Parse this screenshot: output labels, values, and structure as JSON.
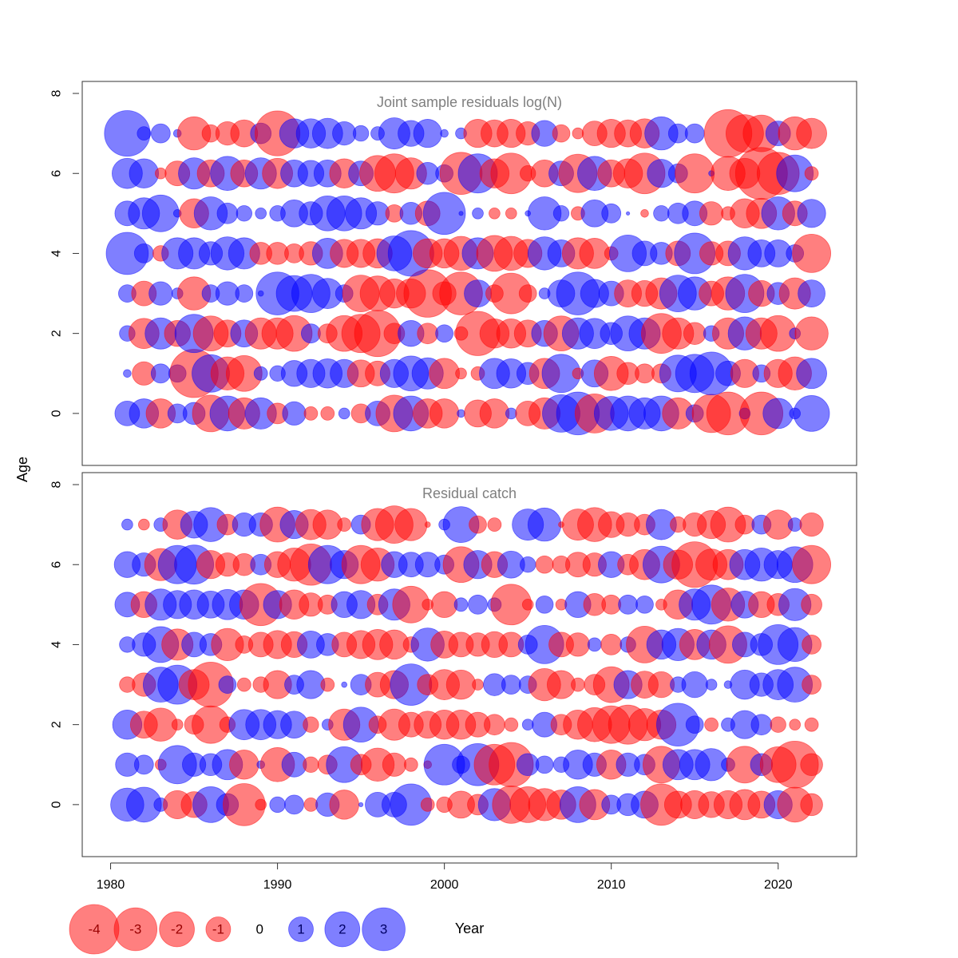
{
  "chart_data": {
    "type": "scatter",
    "style": "bubble",
    "xlabel": "Year",
    "ylabel": "Age",
    "xlim": [
      1978.3,
      2024.7
    ],
    "ylim": [
      -1.3,
      8.3
    ],
    "x_ticks": [
      1980,
      1990,
      2000,
      2010,
      2020
    ],
    "y_ticks": [
      0,
      2,
      4,
      6,
      8
    ],
    "x_tick_labels": [
      "1980",
      "1990",
      "2000",
      "2010",
      "2020"
    ],
    "y_tick_labels": [
      "0",
      "2",
      "4",
      "6",
      "8"
    ],
    "colors": {
      "negative": "#ff0000",
      "positive": "#0000ff",
      "opacity": 0.5
    },
    "years": [
      1981,
      1982,
      1983,
      1984,
      1985,
      1986,
      1987,
      1988,
      1989,
      1990,
      1991,
      1992,
      1993,
      1994,
      1995,
      1996,
      1997,
      1998,
      1999,
      2000,
      2001,
      2002,
      2003,
      2004,
      2005,
      2006,
      2007,
      2008,
      2009,
      2010,
      2011,
      2012,
      2013,
      2014,
      2015,
      2016,
      2017,
      2018,
      2019,
      2020,
      2021,
      2022
    ],
    "ages": [
      0,
      1,
      2,
      3,
      4,
      5,
      6,
      7
    ],
    "legend": {
      "values": [
        -4,
        -3,
        -2,
        -1,
        0,
        1,
        2,
        3
      ],
      "labels": [
        "-4",
        "-3",
        "-2",
        "-1",
        "0",
        "1",
        "2",
        "3"
      ]
    },
    "panels": [
      {
        "title": "Joint sample residuals log(N)",
        "residuals": [
          [
            1.0,
            1.4,
            -1.4,
            0.6,
            0.8,
            -2.2,
            2.0,
            -1.6,
            1.6,
            -0.7,
            0.9,
            -0.3,
            -0.3,
            0.2,
            -0.6,
            1.0,
            -2.2,
            2.0,
            -1.4,
            -1.4,
            0.1,
            -1.2,
            -1.4,
            0.2,
            -1.0,
            -1.6,
            2.3,
            3.0,
            -2.5,
            1.9,
            2.0,
            1.6,
            2.0,
            -1.6,
            0.5,
            -2.4,
            -3.0,
            0.2,
            -3.0,
            1.5,
            0.2,
            2.1
          ],
          [
            0.1,
            -0.9,
            0.6,
            0.5,
            -3.8,
            2.3,
            -1.8,
            -2.1,
            0.3,
            0.4,
            1.1,
            1.3,
            1.4,
            1.3,
            -1.2,
            -1.0,
            1.3,
            2.0,
            1.6,
            -1.5,
            -0.2,
            -0.3,
            1.5,
            1.4,
            0.8,
            -1.5,
            2.4,
            -0.2,
            1.2,
            -1.9,
            -0.8,
            -0.6,
            -0.6,
            2.2,
            2.4,
            3.0,
            1.0,
            -1.3,
            0.5,
            -1.3,
            -1.8,
            1.5
          ],
          [
            0.4,
            -1.5,
            1.6,
            -1.1,
            2.4,
            -2.0,
            -1.2,
            1.2,
            -1.6,
            -1.6,
            -2.1,
            0.6,
            -0.6,
            -2.1,
            -2.4,
            -3.5,
            -0.7,
            1.1,
            -0.7,
            0.5,
            -0.3,
            -3.2,
            -1.4,
            -1.4,
            -1.2,
            1.1,
            -2.0,
            1.6,
            1.5,
            0.8,
            2.0,
            1.6,
            -2.6,
            -1.6,
            -0.8,
            0.4,
            -1.6,
            1.8,
            -1.6,
            -2.1,
            0.2,
            -1.8
          ],
          [
            0.5,
            -1.0,
            0.9,
            0.2,
            -1.8,
            0.5,
            0.9,
            0.5,
            0.05,
            3.0,
            2.1,
            2.4,
            1.5,
            0.5,
            -2.2,
            -2.0,
            -1.4,
            -1.4,
            -3.7,
            -0.9,
            -3.0,
            1.2,
            -0.5,
            -2.7,
            -0.5,
            0.2,
            1.2,
            3.0,
            1.3,
            1.0,
            -1.2,
            -1.1,
            -1.6,
            2.2,
            1.8,
            -1.0,
            -1.8,
            2.4,
            -1.1,
            0.8,
            -1.6,
            1.2
          ],
          [
            2.9,
            0.6,
            -0.4,
            1.6,
            1.6,
            0.9,
            1.8,
            1.6,
            -0.8,
            -0.8,
            -0.6,
            -0.9,
            1.5,
            -1.3,
            -1.3,
            -1.4,
            2.0,
            3.4,
            -1.4,
            -1.4,
            -1.9,
            1.6,
            -2.1,
            -1.9,
            -1.3,
            1.8,
            1.2,
            -1.6,
            -1.5,
            -0.3,
            2.2,
            1.0,
            0.8,
            -1.0,
            2.7,
            -0.9,
            -1.0,
            1.8,
            1.2,
            1.2,
            0.5,
            -2.4
          ],
          [
            1.0,
            1.6,
            2.2,
            0.1,
            -1.4,
            1.8,
            0.7,
            0.4,
            0.2,
            0.4,
            1.2,
            0.9,
            2.0,
            2.0,
            1.6,
            0.9,
            -0.5,
            0.8,
            -1.0,
            2.9,
            0.03,
            0.2,
            -0.2,
            -0.2,
            0.05,
            1.8,
            0.4,
            -0.3,
            1.2,
            0.6,
            0.02,
            -0.1,
            0.4,
            0.7,
            1.0,
            -0.9,
            -0.3,
            -1.4,
            -1.5,
            1.8,
            -1.0,
            1.3
          ],
          [
            1.5,
            1.4,
            -0.2,
            -1.0,
            1.6,
            -1.2,
            1.9,
            -1.2,
            1.6,
            -1.5,
            1.2,
            1.1,
            1.2,
            -1.4,
            1.0,
            -2.1,
            -2.5,
            -1.6,
            0.8,
            0.5,
            -2.9,
            2.5,
            -1.4,
            -2.7,
            -0.4,
            -1.2,
            1.0,
            -2.4,
            1.9,
            -1.2,
            -1.4,
            -2.7,
            1.3,
            0.6,
            -2.5,
            0.05,
            -1.9,
            -1.5,
            -4.4,
            -2.9,
            2.2,
            -0.3
          ],
          [
            3.4,
            0.3,
            0.6,
            0.1,
            -1.8,
            -0.5,
            -0.9,
            -1.2,
            0.7,
            -3.3,
            1.4,
            1.4,
            1.5,
            0.9,
            0.4,
            0.3,
            1.6,
            1.1,
            1.3,
            0.1,
            0.2,
            -1.3,
            -1.2,
            -1.3,
            -0.9,
            1.1,
            -0.5,
            -0.2,
            -1.0,
            -1.3,
            -1.2,
            -1.4,
            1.8,
            0.6,
            0.6,
            0.0,
            -3.7,
            -2.3,
            -2.2,
            1.0,
            -1.8,
            -1.5
          ]
        ]
      },
      {
        "title": "Residual catch",
        "residuals": [
          [
            1.8,
            2.0,
            0.3,
            -1.3,
            -1.1,
            2.1,
            0.8,
            -2.9,
            -0.2,
            0.4,
            0.6,
            -0.3,
            0.9,
            -1.4,
            0.03,
            1.0,
            1.0,
            2.8,
            -0.3,
            -0.4,
            -1.2,
            -0.7,
            1.7,
            -2.3,
            -2.1,
            -1.7,
            -1.4,
            2.1,
            -1.5,
            0.6,
            0.8,
            1.2,
            -2.8,
            -1.2,
            -1.3,
            -1.1,
            -1.3,
            -1.5,
            -1.2,
            1.3,
            -2.0,
            -0.8
          ],
          [
            0.9,
            0.6,
            -0.2,
            2.4,
            0.9,
            0.8,
            1.5,
            -1.4,
            0.1,
            -1.9,
            1.0,
            -0.4,
            -0.6,
            2.1,
            -0.7,
            -1.8,
            -0.9,
            -0.3,
            -0.1,
            2.7,
            0.5,
            2.9,
            -2.7,
            -3.2,
            0.8,
            0.5,
            0.4,
            1.4,
            0.9,
            -1.4,
            0.9,
            0.7,
            -2.2,
            1.5,
            1.5,
            1.7,
            0.3,
            -2.2,
            0.8,
            -2.1,
            -3.6,
            -0.8
          ],
          [
            1.4,
            -1.2,
            -1.8,
            -0.2,
            -0.6,
            -2.3,
            -0.4,
            1.5,
            1.5,
            1.3,
            1.2,
            -0.4,
            0.2,
            -1.6,
            2.0,
            -0.5,
            -1.6,
            -1.0,
            -1.2,
            -1.4,
            -1.4,
            -1.0,
            -0.7,
            -0.3,
            0.2,
            1.0,
            -0.7,
            -1.4,
            -1.9,
            -2.3,
            -2.5,
            -1.7,
            -1.4,
            3.0,
            0.5,
            -0.3,
            0.3,
            1.3,
            0.7,
            -0.4,
            -0.2,
            -0.3
          ],
          [
            -0.4,
            -0.9,
            2.0,
            2.5,
            -1.5,
            -3.3,
            0.5,
            -0.3,
            -0.4,
            -1.3,
            0.6,
            1.3,
            -0.3,
            0.05,
            0.7,
            -1.0,
            -1.3,
            2.8,
            -0.7,
            -1.5,
            -1.4,
            -0.2,
            0.8,
            0.6,
            0.5,
            -1.7,
            -1.3,
            -0.3,
            -0.7,
            -2.1,
            1.3,
            -1.2,
            -1.1,
            0.4,
            1.1,
            0.2,
            0.1,
            1.4,
            0.9,
            1.5,
            2.0,
            -0.6
          ],
          [
            0.4,
            0.9,
            2.1,
            -1.6,
            1.0,
            0.8,
            -1.7,
            -0.5,
            -1.0,
            -1.3,
            -1.1,
            1.2,
            0.8,
            -1.0,
            -1.3,
            -1.5,
            -1.4,
            -0.4,
            1.8,
            -1.2,
            -1.0,
            -0.9,
            -1.1,
            -1.0,
            0.6,
            2.4,
            -1.0,
            -0.9,
            0.3,
            -0.7,
            0.4,
            -2.2,
            1.4,
            1.7,
            -1.5,
            1.4,
            -2.3,
            1.0,
            0.8,
            2.6,
            1.9,
            -0.6
          ],
          [
            1.0,
            -1.1,
            1.6,
            1.3,
            1.4,
            1.2,
            1.5,
            1.4,
            -2.9,
            1.3,
            -1.4,
            -0.9,
            -0.6,
            1.1,
            1.3,
            -0.7,
            1.6,
            -2.2,
            -0.2,
            -1.1,
            0.3,
            0.6,
            0.3,
            -2.7,
            -0.2,
            0.5,
            -0.2,
            1.1,
            -0.8,
            -0.6,
            0.6,
            0.5,
            -0.2,
            -1.4,
            1.6,
            2.5,
            -1.8,
            1.2,
            -1.1,
            -0.8,
            1.7,
            -0.7
          ],
          [
            1.1,
            0.9,
            -1.7,
            2.4,
            2.5,
            -1.3,
            -0.9,
            -0.8,
            0.7,
            -1.1,
            -1.8,
            -2.8,
            2.4,
            1.3,
            -2.4,
            -1.8,
            1.1,
            1.0,
            1.0,
            0.6,
            -2.1,
            1.3,
            -1.1,
            1.2,
            0.4,
            -0.5,
            -0.5,
            -1.0,
            -0.9,
            1.1,
            -0.7,
            -1.5,
            2.2,
            -1.4,
            -3.4,
            -1.6,
            -1.5,
            1.5,
            1.8,
            1.3,
            2.1,
            -2.4
          ],
          [
            0.2,
            -0.2,
            0.3,
            -1.4,
            1.2,
            1.9,
            -0.7,
            0.9,
            0.9,
            -2.0,
            1.3,
            -1.5,
            -1.4,
            -0.3,
            0.6,
            -1.7,
            -2.3,
            -1.7,
            -0.05,
            0.2,
            2.1,
            -0.5,
            -0.3,
            0.0,
            1.6,
            1.8,
            -0.05,
            -1.6,
            -1.9,
            -1.1,
            -0.9,
            -0.7,
            1.5,
            -0.4,
            -0.9,
            -1.3,
            -2.0,
            -0.6,
            0.6,
            -1.4,
            0.3,
            -0.9
          ]
        ]
      }
    ]
  }
}
